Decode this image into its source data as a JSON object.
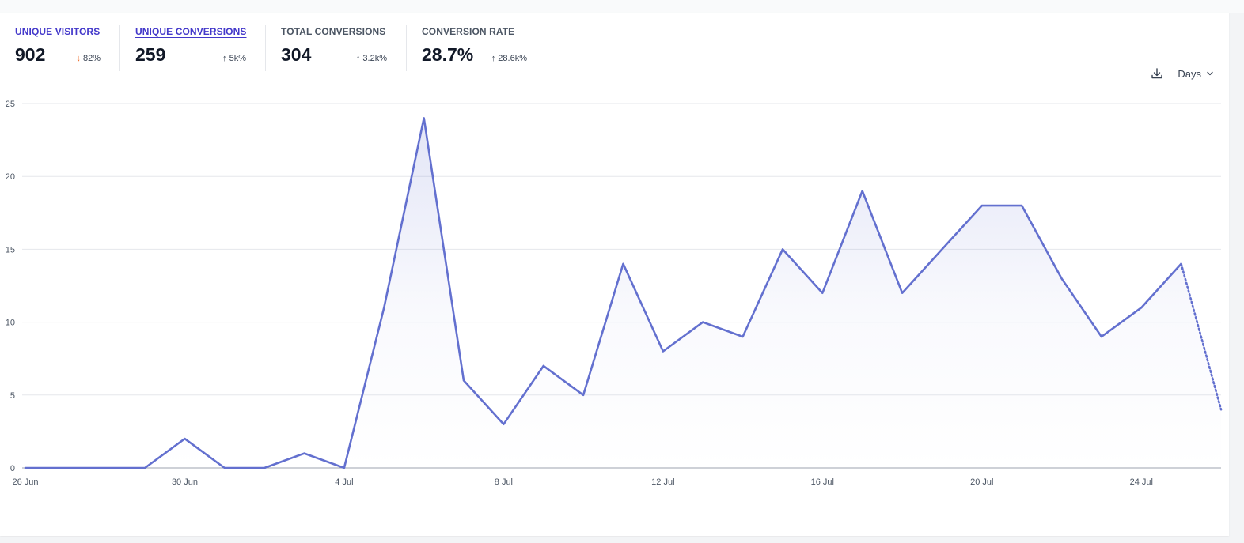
{
  "metrics": [
    {
      "label": "UNIQUE VISITORS",
      "value": "902",
      "arrow": "↓",
      "change": "82%",
      "direction": "down",
      "active": true,
      "underlined": false
    },
    {
      "label": "UNIQUE CONVERSIONS",
      "value": "259",
      "arrow": "↑",
      "change": "5k%",
      "direction": "up",
      "active": true,
      "underlined": true
    },
    {
      "label": "TOTAL CONVERSIONS",
      "value": "304",
      "arrow": "↑",
      "change": "3.2k%",
      "direction": "up",
      "active": false,
      "underlined": false
    },
    {
      "label": "CONVERSION RATE",
      "value": "28.7%",
      "arrow": "↑",
      "change": "28.6k%",
      "direction": "up",
      "active": false,
      "underlined": false
    }
  ],
  "controls": {
    "interval_label": "Days",
    "download_icon": "download-icon",
    "chevron_icon": "chevron-down-icon"
  },
  "colors": {
    "line": "#6370cf",
    "accent": "#4338ca",
    "down": "#ea580c",
    "grid": "#e5e7eb"
  },
  "chart_data": {
    "type": "line",
    "x": [
      "26 Jun",
      "27 Jun",
      "28 Jun",
      "29 Jun",
      "30 Jun",
      "1 Jul",
      "2 Jul",
      "3 Jul",
      "4 Jul",
      "5 Jul",
      "6 Jul",
      "7 Jul",
      "8 Jul",
      "9 Jul",
      "10 Jul",
      "11 Jul",
      "12 Jul",
      "13 Jul",
      "14 Jul",
      "15 Jul",
      "16 Jul",
      "17 Jul",
      "18 Jul",
      "19 Jul",
      "20 Jul",
      "21 Jul",
      "22 Jul",
      "23 Jul",
      "24 Jul",
      "25 Jul",
      "26 Jul"
    ],
    "series": [
      {
        "values": [
          0,
          0,
          0,
          0,
          2,
          0,
          0,
          1,
          0,
          11,
          24,
          6,
          3,
          7,
          5,
          14,
          8,
          10,
          9,
          15,
          12,
          19,
          12,
          15,
          18,
          18,
          13,
          9,
          11,
          14,
          4
        ]
      }
    ],
    "partial_from_index": 29,
    "tick_labels": [
      "26 Jun",
      "30 Jun",
      "4 Jul",
      "8 Jul",
      "12 Jul",
      "16 Jul",
      "20 Jul",
      "24 Jul"
    ],
    "yticks": [
      0,
      5,
      10,
      15,
      20,
      25
    ],
    "ylim": [
      0,
      25
    ],
    "grid": true,
    "legend": "none"
  }
}
